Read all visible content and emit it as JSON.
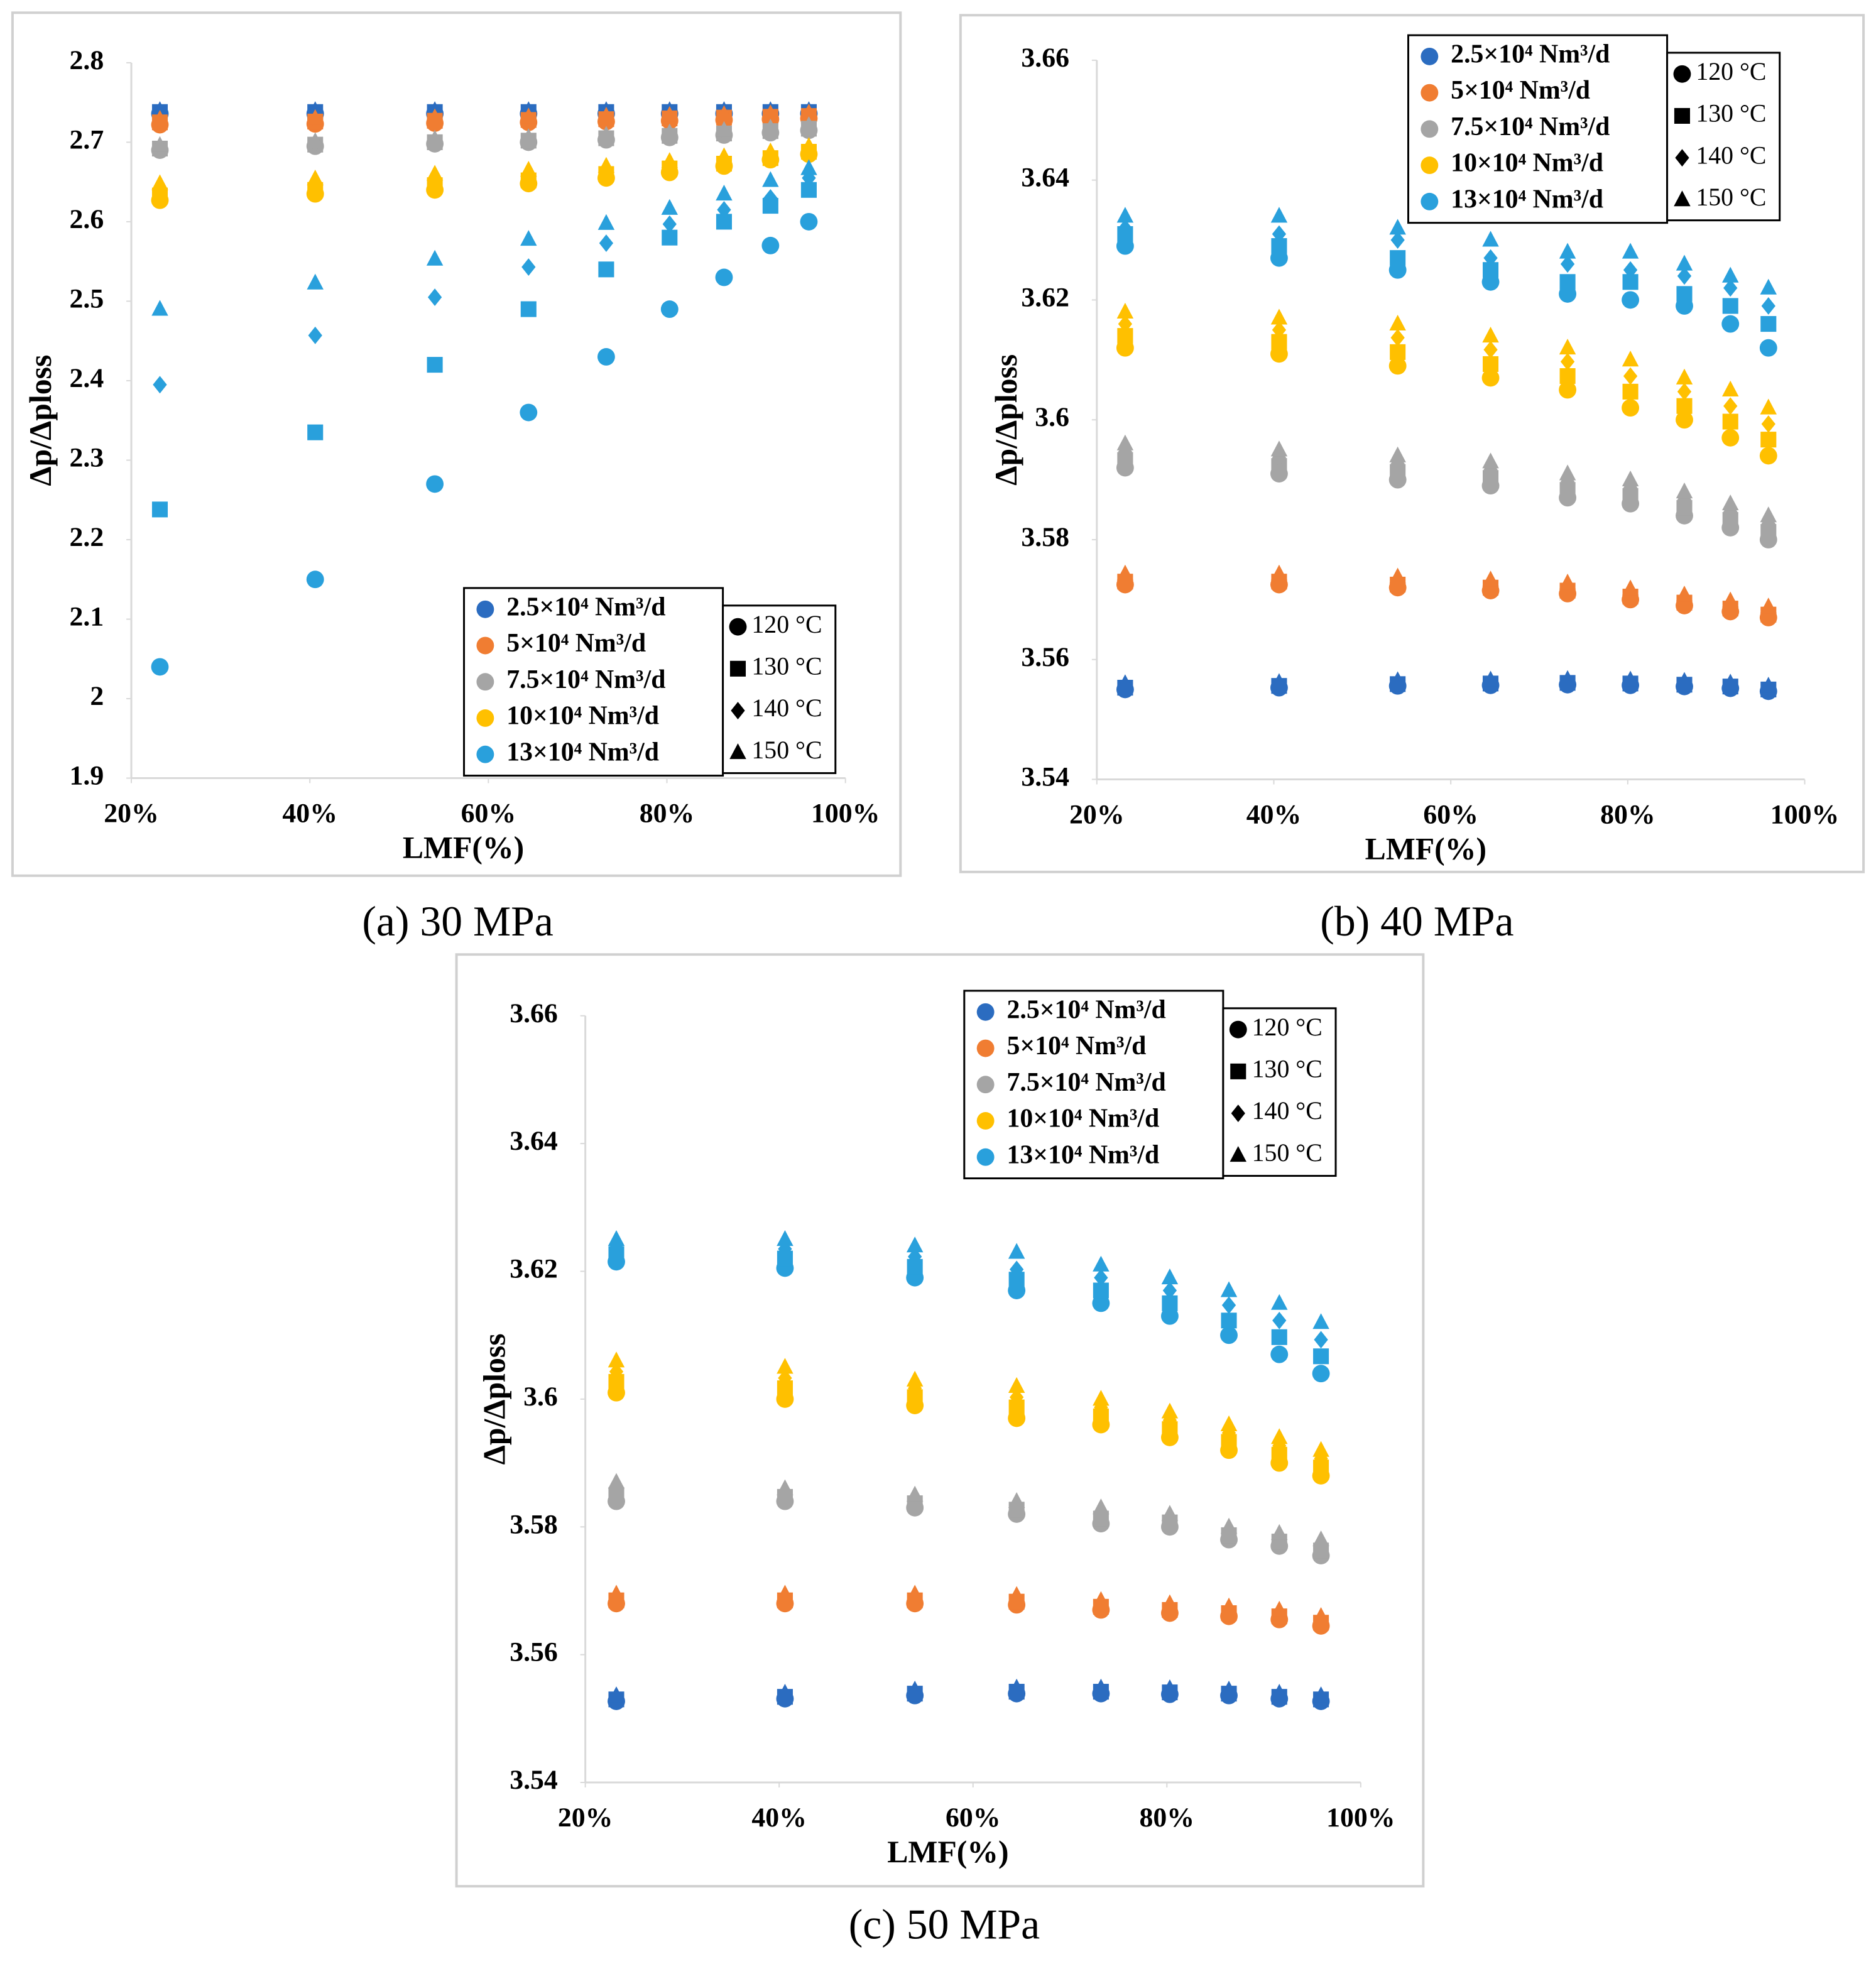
{
  "chart_data": [
    {
      "type": "scatter",
      "caption": "(a) 30 MPa",
      "x_label": "LMF(%)",
      "y_label": "Δp/Δploss",
      "legend": "lower right",
      "x": [
        23.2,
        40.6,
        54,
        64.5,
        73.2,
        80.3,
        86.4,
        91.6,
        95.9
      ],
      "xlim": [
        20,
        100
      ],
      "xticks": [
        {
          "value": 20,
          "label": "20%"
        },
        {
          "value": 40,
          "label": "40%"
        },
        {
          "value": 60,
          "label": "60%"
        },
        {
          "value": 80,
          "label": "80%"
        },
        {
          "value": 100,
          "label": "100%"
        }
      ],
      "ylim": [
        1.9,
        2.8
      ],
      "yticks": [
        1.9,
        2,
        2.1,
        2.2,
        2.3,
        2.4,
        2.5,
        2.6,
        2.7,
        2.8
      ],
      "markers": [
        {
          "name": "120 °C",
          "shape": "circle"
        },
        {
          "name": "130 °C",
          "shape": "square"
        },
        {
          "name": "140 °C",
          "shape": "diamond"
        },
        {
          "name": "150 °C",
          "shape": "triangle"
        }
      ],
      "series": [
        {
          "name": "2.5×10⁴ Nm³/d",
          "color": "#2b6cc0",
          "values": [
            [
              2.736,
              2.736,
              2.736,
              2.736,
              2.736,
              2.736,
              2.736,
              2.736,
              2.736
            ],
            [
              2.738,
              2.738,
              2.738,
              2.738,
              2.738,
              2.738,
              2.738,
              2.738,
              2.738
            ],
            [
              2.739,
              2.739,
              2.739,
              2.739,
              2.739,
              2.739,
              2.739,
              2.739,
              2.739
            ],
            [
              2.74,
              2.74,
              2.74,
              2.74,
              2.74,
              2.74,
              2.74,
              2.74,
              2.74
            ]
          ]
        },
        {
          "name": "5×10⁴ Nm³/d",
          "color": "#f07d32",
          "values": [
            [
              2.722,
              2.723,
              2.724,
              2.725,
              2.726,
              2.727,
              2.728,
              2.729,
              2.73
            ],
            [
              2.725,
              2.726,
              2.727,
              2.728,
              2.729,
              2.73,
              2.731,
              2.732,
              2.733
            ],
            [
              2.727,
              2.728,
              2.729,
              2.73,
              2.731,
              2.732,
              2.733,
              2.734,
              2.735
            ],
            [
              2.729,
              2.73,
              2.731,
              2.732,
              2.733,
              2.734,
              2.735,
              2.736,
              2.737
            ]
          ]
        },
        {
          "name": "7.5×10⁴ Nm³/d",
          "color": "#a5a5a5",
          "values": [
            [
              2.69,
              2.695,
              2.698,
              2.7,
              2.703,
              2.706,
              2.709,
              2.712,
              2.715
            ],
            [
              2.692,
              2.697,
              2.7,
              2.702,
              2.705,
              2.708,
              2.711,
              2.714,
              2.717
            ],
            [
              2.694,
              2.699,
              2.702,
              2.704,
              2.707,
              2.71,
              2.713,
              2.716,
              2.719
            ],
            [
              2.696,
              2.701,
              2.704,
              2.706,
              2.709,
              2.712,
              2.715,
              2.718,
              2.721
            ]
          ]
        },
        {
          "name": "10×10⁴ Nm³/d",
          "color": "#ffc000",
          "values": [
            [
              2.627,
              2.635,
              2.64,
              2.648,
              2.655,
              2.662,
              2.67,
              2.678,
              2.685
            ],
            [
              2.633,
              2.64,
              2.646,
              2.652,
              2.66,
              2.667,
              2.673,
              2.68,
              2.688
            ],
            [
              2.64,
              2.646,
              2.652,
              2.658,
              2.664,
              2.67,
              2.677,
              2.684,
              2.692
            ],
            [
              2.648,
              2.654,
              2.66,
              2.665,
              2.67,
              2.676,
              2.682,
              2.688,
              2.695
            ]
          ]
        },
        {
          "name": "13×10⁴ Nm³/d",
          "color": "#29a0dc",
          "values": [
            [
              2.04,
              2.15,
              2.27,
              2.36,
              2.43,
              2.49,
              2.53,
              2.57,
              2.6
            ],
            [
              2.238,
              2.335,
              2.42,
              2.49,
              2.54,
              2.58,
              2.6,
              2.62,
              2.64
            ],
            [
              2.395,
              2.457,
              2.505,
              2.543,
              2.573,
              2.597,
              2.615,
              2.63,
              2.655
            ],
            [
              2.49,
              2.523,
              2.553,
              2.578,
              2.598,
              2.617,
              2.635,
              2.652,
              2.667
            ]
          ]
        }
      ]
    },
    {
      "type": "scatter",
      "caption": "(b) 40 MPa",
      "x_label": "LMF(%)",
      "y_label": "Δp/Δploss",
      "legend": "upper right",
      "x": [
        23.2,
        40.6,
        54,
        64.5,
        73.2,
        80.3,
        86.4,
        91.6,
        95.9
      ],
      "xlim": [
        20,
        100
      ],
      "xticks": [
        {
          "value": 20,
          "label": "20%"
        },
        {
          "value": 40,
          "label": "40%"
        },
        {
          "value": 60,
          "label": "60%"
        },
        {
          "value": 80,
          "label": "80%"
        },
        {
          "value": 100,
          "label": "100%"
        }
      ],
      "ylim": [
        3.54,
        3.66
      ],
      "yticks": [
        3.54,
        3.56,
        3.58,
        3.6,
        3.62,
        3.64,
        3.66
      ],
      "markers": [
        {
          "name": "120 °C",
          "shape": "circle"
        },
        {
          "name": "130 °C",
          "shape": "square"
        },
        {
          "name": "140 °C",
          "shape": "diamond"
        },
        {
          "name": "150 °C",
          "shape": "triangle"
        }
      ],
      "series": [
        {
          "name": "2.5×10⁴ Nm³/d",
          "color": "#2b6cc0",
          "values": [
            [
              3.555,
              3.5553,
              3.5556,
              3.5557,
              3.5558,
              3.5557,
              3.5555,
              3.5552,
              3.5547
            ],
            [
              3.5553,
              3.5556,
              3.5559,
              3.556,
              3.5561,
              3.556,
              3.5558,
              3.5555,
              3.555
            ],
            [
              3.5556,
              3.5559,
              3.5562,
              3.5563,
              3.5564,
              3.5563,
              3.5561,
              3.5558,
              3.5553
            ],
            [
              3.556,
              3.5562,
              3.5565,
              3.5566,
              3.5567,
              3.5566,
              3.5564,
              3.5561,
              3.5556
            ]
          ]
        },
        {
          "name": "5×10⁴ Nm³/d",
          "color": "#f07d32",
          "values": [
            [
              3.5725,
              3.5725,
              3.572,
              3.5715,
              3.571,
              3.57,
              3.569,
              3.568,
              3.567
            ],
            [
              3.573,
              3.573,
              3.5725,
              3.572,
              3.5715,
              3.5705,
              3.5695,
              3.5685,
              3.5675
            ],
            [
              3.5735,
              3.5735,
              3.573,
              3.5725,
              3.572,
              3.571,
              3.57,
              3.569,
              3.568
            ],
            [
              3.5743,
              3.5743,
              3.5738,
              3.5733,
              3.5728,
              3.5718,
              3.5708,
              3.5698,
              3.5688
            ]
          ]
        },
        {
          "name": "7.5×10⁴ Nm³/d",
          "color": "#a5a5a5",
          "values": [
            [
              3.592,
              3.591,
              3.59,
              3.589,
              3.587,
              3.586,
              3.584,
              3.582,
              3.58
            ],
            [
              3.5933,
              3.5923,
              3.5913,
              3.5903,
              3.5883,
              3.5873,
              3.5853,
              3.5833,
              3.5813
            ],
            [
              3.5947,
              3.5937,
              3.5927,
              3.5917,
              3.5897,
              3.5887,
              3.5867,
              3.5847,
              3.5827
            ],
            [
              3.596,
              3.595,
              3.594,
              3.593,
              3.591,
              3.59,
              3.588,
              3.586,
              3.584
            ]
          ]
        },
        {
          "name": "10×10⁴ Nm³/d",
          "color": "#ffc000",
          "values": [
            [
              3.612,
              3.611,
              3.609,
              3.607,
              3.605,
              3.602,
              3.6,
              3.597,
              3.594
            ],
            [
              3.614,
              3.613,
              3.6113,
              3.6093,
              3.6073,
              3.6047,
              3.6023,
              3.5997,
              3.5967
            ],
            [
              3.616,
              3.615,
              3.6137,
              3.6117,
              3.6097,
              3.6073,
              3.6047,
              3.6023,
              3.5993
            ],
            [
              3.618,
              3.617,
              3.616,
              3.614,
              3.612,
              3.61,
              3.607,
              3.605,
              3.602
            ]
          ]
        },
        {
          "name": "13×10⁴ Nm³/d",
          "color": "#29a0dc",
          "values": [
            [
              3.629,
              3.627,
              3.625,
              3.623,
              3.621,
              3.62,
              3.619,
              3.616,
              3.612
            ],
            [
              3.631,
              3.629,
              3.627,
              3.625,
              3.623,
              3.623,
              3.621,
              3.619,
              3.616
            ],
            [
              3.632,
              3.631,
              3.63,
              3.627,
              3.626,
              3.625,
              3.624,
              3.622,
              3.619
            ],
            [
              3.634,
              3.634,
              3.632,
              3.63,
              3.628,
              3.628,
              3.626,
              3.624,
              3.622
            ]
          ]
        }
      ]
    },
    {
      "type": "scatter",
      "caption": "(c) 50 MPa",
      "x_label": "LMF(%)",
      "y_label": "Δp/Δploss",
      "legend": "upper right",
      "x": [
        23.2,
        40.6,
        54,
        64.5,
        73.2,
        80.3,
        86.4,
        91.6,
        95.9
      ],
      "xlim": [
        20,
        100
      ],
      "xticks": [
        {
          "value": 20,
          "label": "20%"
        },
        {
          "value": 40,
          "label": "40%"
        },
        {
          "value": 60,
          "label": "60%"
        },
        {
          "value": 80,
          "label": "80%"
        },
        {
          "value": 100,
          "label": "100%"
        }
      ],
      "ylim": [
        3.54,
        3.66
      ],
      "yticks": [
        3.54,
        3.56,
        3.58,
        3.6,
        3.62,
        3.64,
        3.66
      ],
      "markers": [
        {
          "name": "120 °C",
          "shape": "circle"
        },
        {
          "name": "130 °C",
          "shape": "square"
        },
        {
          "name": "140 °C",
          "shape": "diamond"
        },
        {
          "name": "150 °C",
          "shape": "triangle"
        }
      ],
      "series": [
        {
          "name": "2.5×10⁴ Nm³/d",
          "color": "#2b6cc0",
          "values": [
            [
              3.5527,
              3.5531,
              3.5536,
              3.5539,
              3.5539,
              3.5538,
              3.5536,
              3.5531,
              3.5527
            ],
            [
              3.553,
              3.5534,
              3.5539,
              3.5542,
              3.5542,
              3.5541,
              3.5539,
              3.5534,
              3.553
            ],
            [
              3.5533,
              3.5537,
              3.5542,
              3.5545,
              3.5545,
              3.5544,
              3.5542,
              3.5537,
              3.5533
            ],
            [
              3.5536,
              3.554,
              3.5545,
              3.5548,
              3.5548,
              3.5547,
              3.5545,
              3.554,
              3.5536
            ]
          ]
        },
        {
          "name": "5×10⁴ Nm³/d",
          "color": "#f07d32",
          "values": [
            [
              3.568,
              3.568,
              3.568,
              3.5678,
              3.567,
              3.5665,
              3.566,
              3.5655,
              3.5645
            ],
            [
              3.5685,
              3.5685,
              3.5685,
              3.5683,
              3.5675,
              3.567,
              3.5665,
              3.566,
              3.565
            ],
            [
              3.569,
              3.569,
              3.569,
              3.5688,
              3.568,
              3.5675,
              3.567,
              3.5665,
              3.5655
            ],
            [
              3.5695,
              3.5695,
              3.5695,
              3.5693,
              3.5685,
              3.568,
              3.5675,
              3.567,
              3.566
            ]
          ]
        },
        {
          "name": "7.5×10⁴ Nm³/d",
          "color": "#a5a5a5",
          "values": [
            [
              3.584,
              3.584,
              3.583,
              3.582,
              3.5805,
              3.58,
              3.578,
              3.577,
              3.5755
            ],
            [
              3.585,
              3.5847,
              3.5837,
              3.5827,
              3.5813,
              3.5807,
              3.5787,
              3.5777,
              3.5763
            ],
            [
              3.586,
              3.5853,
              3.5843,
              3.5833,
              3.5822,
              3.5813,
              3.5793,
              3.5783,
              3.5772
            ],
            [
              3.587,
              3.586,
              3.585,
              3.584,
              3.583,
              3.582,
              3.58,
              3.579,
              3.578
            ]
          ]
        },
        {
          "name": "10×10⁴ Nm³/d",
          "color": "#ffc000",
          "values": [
            [
              3.601,
              3.6,
              3.599,
              3.597,
              3.596,
              3.594,
              3.592,
              3.59,
              3.588
            ],
            [
              3.6027,
              3.6017,
              3.6003,
              3.5987,
              3.5973,
              3.5953,
              3.5933,
              3.5913,
              3.5893
            ],
            [
              3.6043,
              3.6033,
              3.6017,
              3.6003,
              3.5987,
              3.5967,
              3.5947,
              3.5927,
              3.5907
            ],
            [
              3.606,
              3.605,
              3.603,
              3.602,
              3.6,
              3.598,
              3.596,
              3.594,
              3.592
            ]
          ]
        },
        {
          "name": "13×10⁴ Nm³/d",
          "color": "#29a0dc",
          "values": [
            [
              3.6215,
              3.6205,
              3.619,
              3.617,
              3.615,
              3.613,
              3.61,
              3.607,
              3.604
            ],
            [
              3.6227,
              3.622,
              3.6207,
              3.6187,
              3.617,
              3.615,
              3.6123,
              3.6097,
              3.6067
            ],
            [
              3.6238,
              3.6235,
              3.6223,
              3.6203,
              3.619,
              3.617,
              3.6147,
              3.6123,
              3.6093
            ],
            [
              3.625,
              3.625,
              3.624,
              3.623,
              3.621,
              3.619,
              3.617,
              3.615,
              3.612
            ]
          ]
        }
      ]
    }
  ]
}
